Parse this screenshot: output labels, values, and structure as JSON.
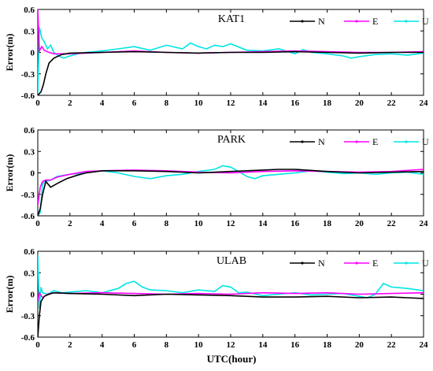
{
  "chart_data": [
    {
      "type": "line",
      "title": "KAT1",
      "ylabel": "Error(m)",
      "xlabel": "",
      "xlim": [
        0,
        24
      ],
      "ylim": [
        -0.6,
        0.6
      ],
      "xticks": [
        "0",
        "2",
        "4",
        "6",
        "8",
        "10",
        "12",
        "14",
        "16",
        "18",
        "20",
        "22",
        "24"
      ],
      "yticks": [
        "-0.6",
        "-0.3",
        "0",
        "0.3",
        "0.6"
      ],
      "legend": "top-right",
      "grid": false,
      "series": [
        {
          "name": "N",
          "color": "#000000",
          "x": [
            0,
            0.2,
            0.35,
            0.5,
            0.7,
            1.0,
            1.5,
            2,
            4,
            6,
            8,
            10,
            12,
            14,
            16,
            18,
            20,
            22,
            24
          ],
          "y": [
            -0.6,
            -0.55,
            -0.45,
            -0.3,
            -0.15,
            -0.08,
            -0.03,
            -0.01,
            0.0,
            0.01,
            0.0,
            -0.01,
            0.0,
            0.0,
            0.01,
            0.0,
            -0.01,
            0.0,
            0.0
          ]
        },
        {
          "name": "E",
          "color": "#ff00ff",
          "x": [
            0,
            0.1,
            0.25,
            0.4,
            0.7,
            1.0,
            2,
            4,
            6,
            8,
            10,
            12,
            14,
            16,
            18,
            20,
            22,
            24
          ],
          "y": [
            0.6,
            0.02,
            0.08,
            0.03,
            0.0,
            -0.02,
            -0.02,
            0.0,
            0.02,
            0.0,
            -0.01,
            0.0,
            0.01,
            0.02,
            0.01,
            0.0,
            0.0,
            0.01
          ]
        },
        {
          "name": "U",
          "color": "#00e5e5",
          "x": [
            0,
            0.1,
            0.25,
            0.4,
            0.6,
            0.8,
            1.0,
            1.3,
            1.6,
            2,
            2.5,
            3,
            4,
            5,
            6,
            7,
            8,
            9,
            9.5,
            10,
            10.5,
            11,
            11.5,
            12,
            13,
            14,
            15,
            16,
            16.5,
            17,
            18,
            19,
            19.5,
            20,
            21,
            22,
            23,
            24
          ],
          "y": [
            -0.6,
            0.35,
            0.2,
            0.15,
            0.05,
            0.1,
            0.0,
            -0.05,
            -0.08,
            -0.05,
            -0.02,
            0.0,
            0.02,
            0.05,
            0.08,
            0.03,
            0.1,
            0.05,
            0.13,
            0.08,
            0.05,
            0.1,
            0.08,
            0.12,
            0.03,
            0.02,
            0.05,
            -0.02,
            0.04,
            0.0,
            -0.02,
            -0.05,
            -0.08,
            -0.06,
            -0.03,
            -0.02,
            -0.04,
            -0.01
          ]
        }
      ]
    },
    {
      "type": "line",
      "title": "PARK",
      "ylabel": "Error(m)",
      "xlabel": "",
      "xlim": [
        0,
        24
      ],
      "ylim": [
        -0.6,
        0.6
      ],
      "xticks": [
        "0",
        "2",
        "4",
        "6",
        "8",
        "10",
        "12",
        "14",
        "16",
        "18",
        "20",
        "22",
        "24"
      ],
      "yticks": [
        "-0.6",
        "-0.3",
        "0",
        "0.3",
        "0.6"
      ],
      "legend": "top-right",
      "grid": false,
      "series": [
        {
          "name": "N",
          "color": "#000000",
          "x": [
            0,
            0.15,
            0.3,
            0.5,
            0.8,
            1.2,
            1.8,
            2.5,
            3,
            4,
            6,
            8,
            10,
            12,
            14,
            15,
            16,
            18,
            20,
            22,
            24
          ],
          "y": [
            -0.6,
            -0.5,
            -0.3,
            -0.12,
            -0.2,
            -0.15,
            -0.08,
            -0.03,
            0.0,
            0.03,
            0.03,
            0.02,
            0.0,
            0.02,
            0.04,
            0.05,
            0.05,
            0.02,
            0.0,
            0.01,
            0.02
          ]
        },
        {
          "name": "E",
          "color": "#ff00ff",
          "x": [
            0,
            0.15,
            0.3,
            0.5,
            0.8,
            1.2,
            2,
            3,
            4,
            6,
            8,
            10,
            12,
            14,
            16,
            18,
            20,
            22,
            24
          ],
          "y": [
            -0.45,
            -0.2,
            -0.12,
            -0.1,
            -0.1,
            -0.06,
            -0.02,
            0.02,
            0.03,
            0.04,
            0.03,
            0.01,
            0.0,
            0.02,
            0.03,
            0.02,
            0.01,
            0.02,
            0.05
          ]
        },
        {
          "name": "U",
          "color": "#00e5e5",
          "x": [
            0,
            0.15,
            0.3,
            0.5,
            0.8,
            1.2,
            2,
            3,
            4,
            5,
            6,
            7,
            8,
            9,
            10,
            11,
            11.5,
            12,
            12.5,
            13,
            13.5,
            14,
            15,
            16,
            17,
            18,
            19,
            20,
            21,
            22,
            23,
            24
          ],
          "y": [
            -0.6,
            -0.55,
            -0.15,
            -0.12,
            -0.1,
            -0.05,
            -0.02,
            0.0,
            0.03,
            0.0,
            -0.05,
            -0.08,
            -0.04,
            -0.02,
            0.02,
            0.05,
            0.1,
            0.08,
            0.02,
            -0.05,
            -0.08,
            -0.04,
            -0.02,
            0.0,
            0.03,
            0.01,
            -0.01,
            0.0,
            -0.02,
            0.0,
            0.01,
            -0.02
          ]
        }
      ]
    },
    {
      "type": "line",
      "title": "ULAB",
      "ylabel": "Error(m)",
      "xlabel": "UTC(hour)",
      "xlim": [
        0,
        24
      ],
      "ylim": [
        -0.6,
        0.6
      ],
      "xticks": [
        "0",
        "2",
        "4",
        "6",
        "8",
        "10",
        "12",
        "14",
        "16",
        "18",
        "20",
        "22",
        "24"
      ],
      "yticks": [
        "-0.6",
        "-0.3",
        "0",
        "0.3",
        "0.6"
      ],
      "legend": "top-right",
      "grid": false,
      "series": [
        {
          "name": "N",
          "color": "#000000",
          "x": [
            0,
            0.1,
            0.2,
            0.4,
            0.7,
            1,
            2,
            4,
            6,
            8,
            10,
            12,
            14,
            16,
            18,
            20,
            22,
            23,
            24
          ],
          "y": [
            -0.6,
            -0.3,
            -0.1,
            -0.03,
            0.0,
            0.02,
            0.01,
            0.0,
            -0.02,
            0.0,
            -0.01,
            -0.02,
            -0.04,
            -0.04,
            -0.03,
            -0.05,
            -0.04,
            -0.05,
            -0.06
          ]
        },
        {
          "name": "E",
          "color": "#ff00ff",
          "x": [
            0,
            0.1,
            0.3,
            0.6,
            1,
            2,
            4,
            6,
            8,
            10,
            12,
            14,
            16,
            18,
            20,
            22,
            24
          ],
          "y": [
            -0.1,
            0.02,
            -0.05,
            0.0,
            0.02,
            0.01,
            0.02,
            0.01,
            0.0,
            0.01,
            0.0,
            0.02,
            0.01,
            0.02,
            0.0,
            0.01,
            0.02
          ]
        },
        {
          "name": "U",
          "color": "#00e5e5",
          "x": [
            0,
            0.1,
            0.2,
            0.3,
            0.6,
            1,
            1.5,
            2,
            3,
            4,
            5,
            5.5,
            6,
            6.5,
            7,
            8,
            9,
            10,
            11,
            11.5,
            12,
            12.5,
            13,
            14,
            15,
            16,
            17,
            18,
            19,
            20,
            20.5,
            21,
            21.5,
            22,
            23,
            24
          ],
          "y": [
            0.55,
            -0.2,
            0.1,
            0.02,
            0.0,
            0.05,
            0.02,
            0.03,
            0.05,
            0.02,
            0.08,
            0.15,
            0.18,
            0.1,
            0.06,
            0.05,
            0.02,
            0.06,
            0.04,
            0.12,
            0.1,
            0.02,
            0.03,
            -0.02,
            0.0,
            0.02,
            -0.01,
            0.0,
            0.01,
            -0.03,
            -0.05,
            0.0,
            0.15,
            0.1,
            0.08,
            0.05
          ]
        }
      ]
    }
  ]
}
